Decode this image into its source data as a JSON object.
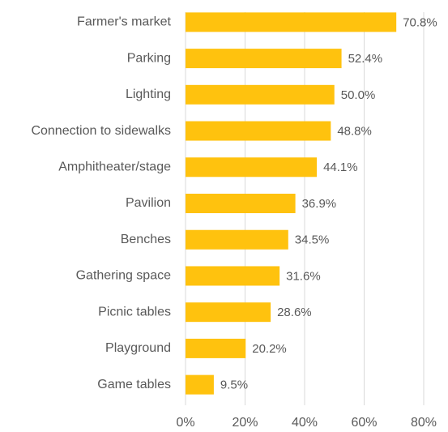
{
  "chart_data": {
    "type": "bar",
    "orientation": "horizontal",
    "categories": [
      "Farmer's market",
      "Parking",
      "Lighting",
      "Connection to sidewalks",
      "Amphitheater/stage",
      "Pavilion",
      "Benches",
      "Gathering space",
      "Picnic tables",
      "Playground",
      "Game tables"
    ],
    "values": [
      70.8,
      52.4,
      50.0,
      48.8,
      44.1,
      36.9,
      34.5,
      31.6,
      28.6,
      20.2,
      9.5
    ],
    "value_labels": [
      "70.8%",
      "52.4%",
      "50.0%",
      "48.8%",
      "44.1%",
      "36.9%",
      "34.5%",
      "31.6%",
      "28.6%",
      "20.2%",
      "9.5%"
    ],
    "color": "#ffc20e",
    "xlim": [
      0,
      80
    ],
    "xticks": [
      {
        "value": 0,
        "label": "0%"
      },
      {
        "value": 20,
        "label": "20%"
      },
      {
        "value": 40,
        "label": "40%"
      },
      {
        "value": 60,
        "label": "60%"
      },
      {
        "value": 80,
        "label": "80%"
      }
    ],
    "grid": true
  }
}
